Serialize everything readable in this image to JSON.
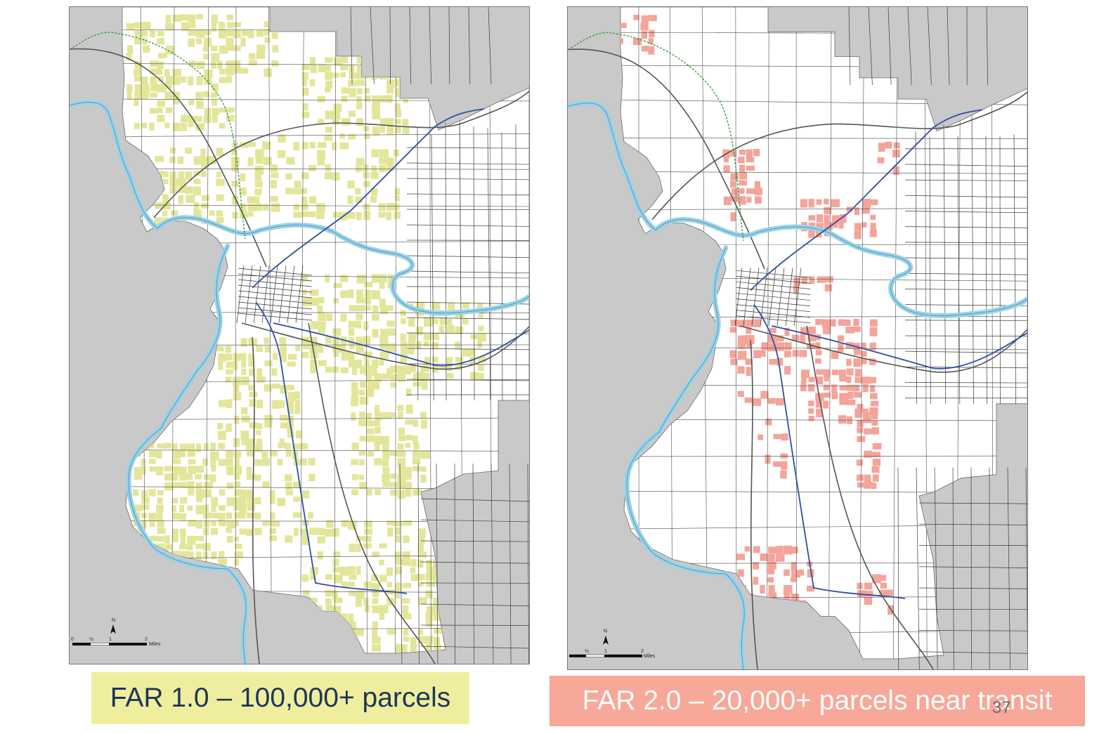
{
  "maps": [
    {
      "id": "left",
      "highlight_color": "#e3e69a",
      "caption": "FAR 1.0 – 100,000+ parcels"
    },
    {
      "id": "right",
      "highlight_color": "#f4a49a",
      "caption": "FAR 2.0 – 20,000+ parcels near transit"
    }
  ],
  "page_number": "37",
  "colors": {
    "water": "#9cd3e6",
    "river_outline": "#2b7fc1",
    "transit": "#2f4fa8",
    "trail": "#3f9a3f",
    "outside": "#c9c9c9",
    "city": "#ffffff"
  }
}
